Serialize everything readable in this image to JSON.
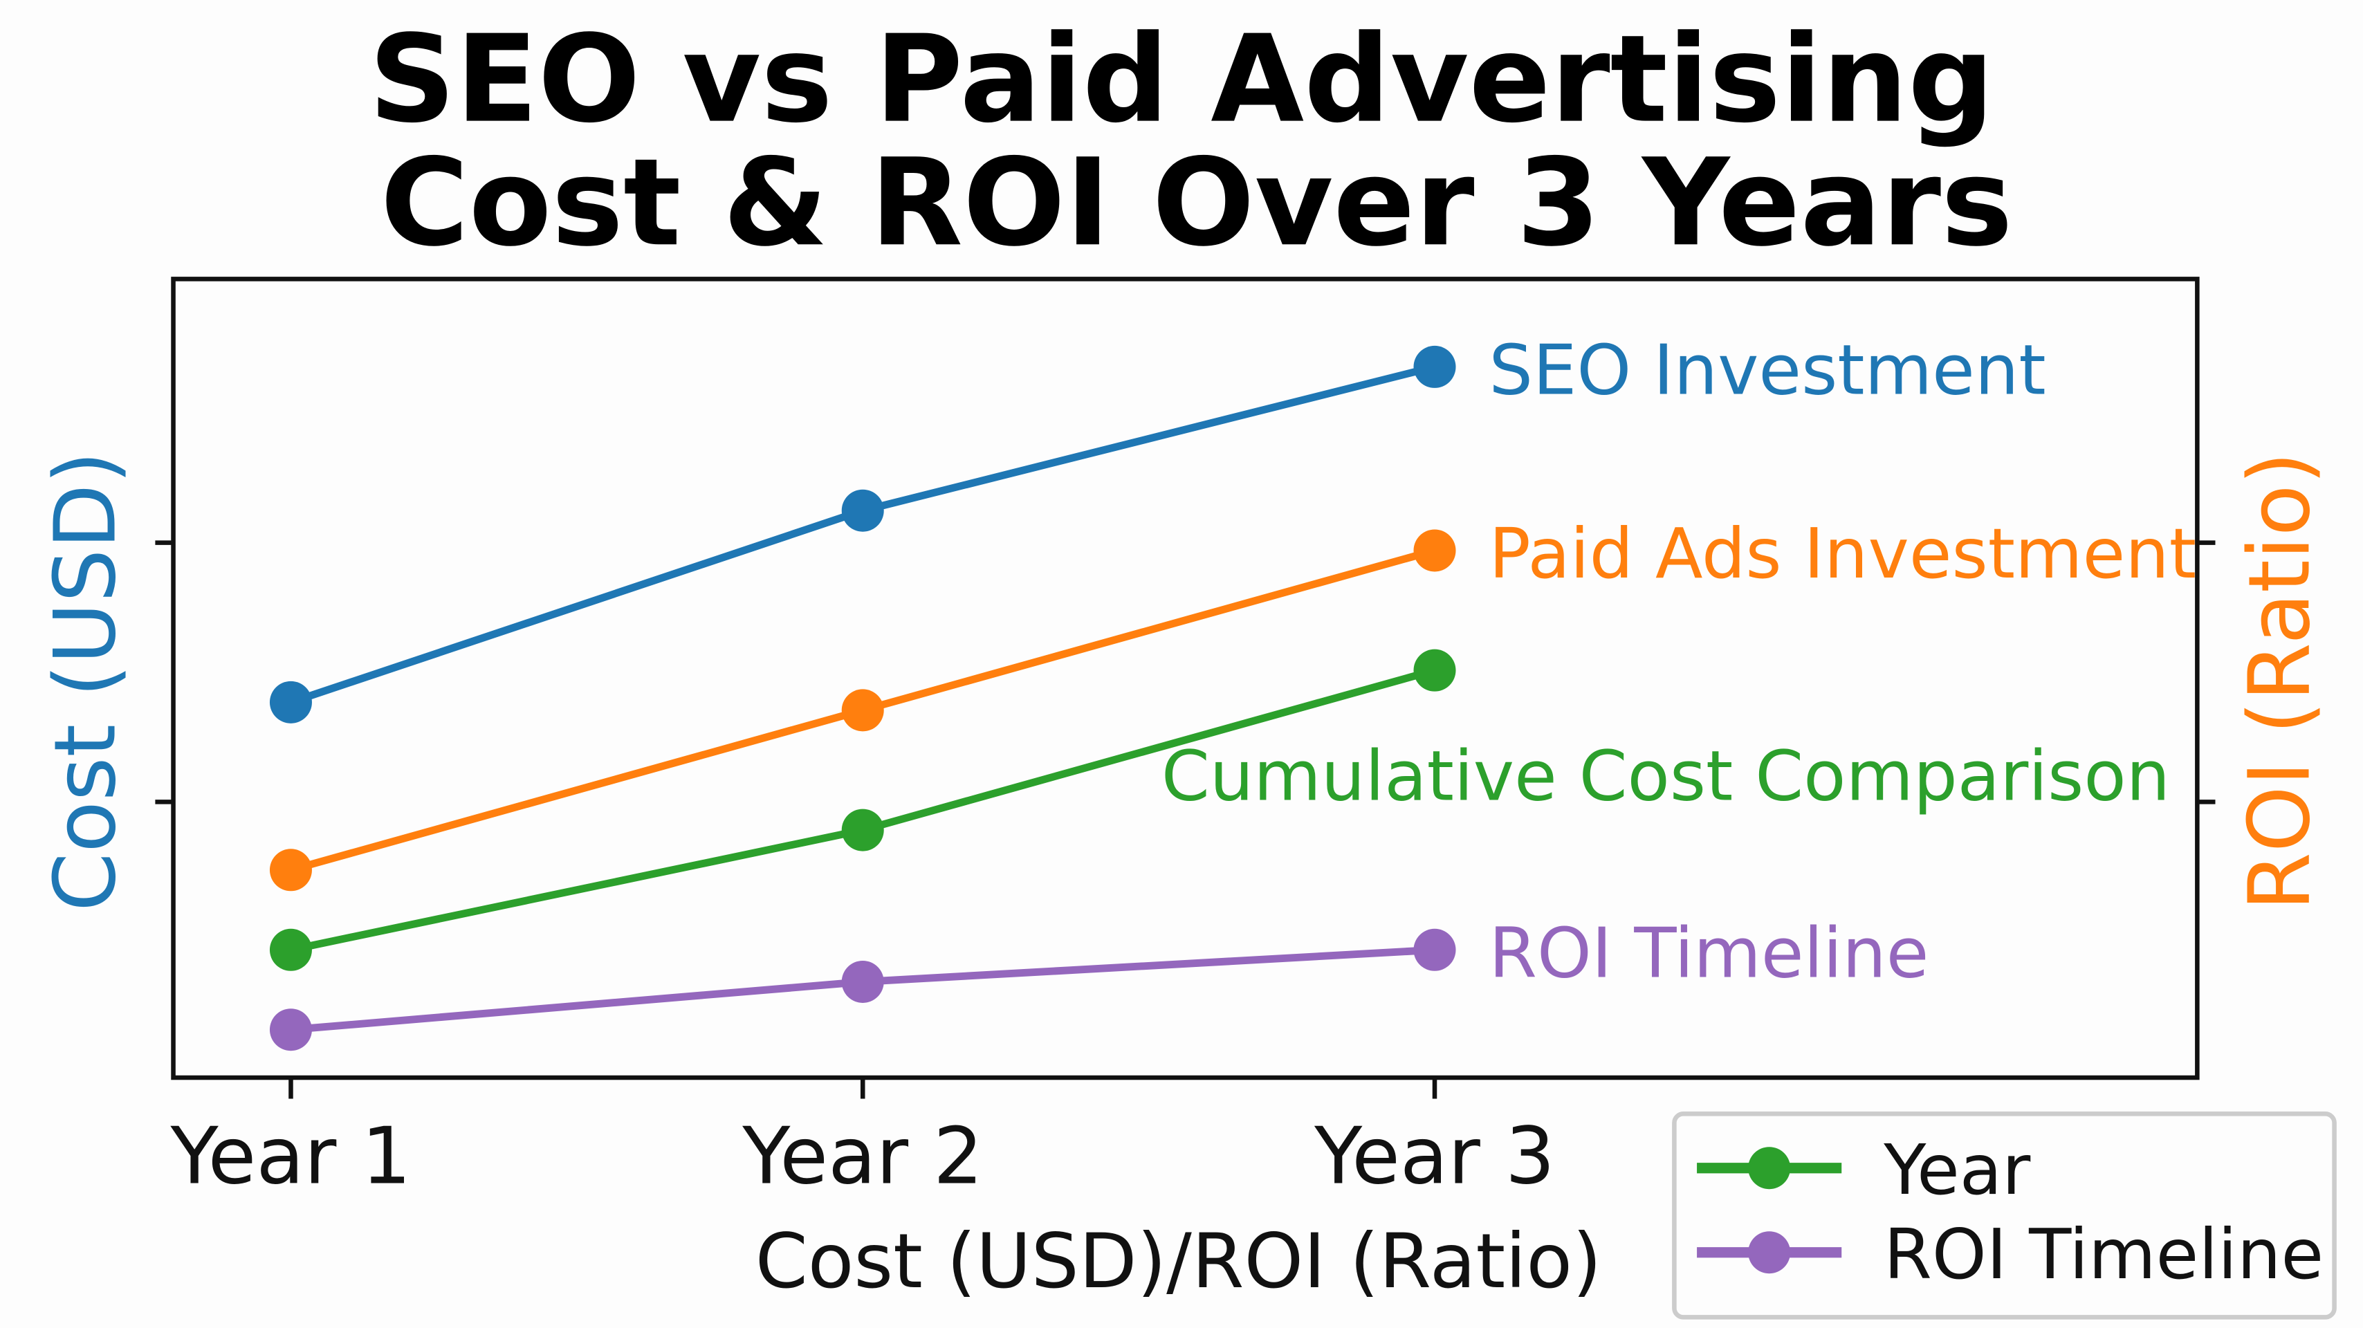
{
  "chart_data": {
    "type": "line",
    "title_lines": [
      "SEO vs Paid Advertising",
      "Cost & ROI Over 3 Years"
    ],
    "xlabel": "Cost (USD)/ROI (Ratio)",
    "ylabel_left": "Cost (USD)",
    "ylabel_right": "ROI (Ratio)",
    "categories": [
      "Year 1",
      "Year 2",
      "Year 3"
    ],
    "ylim": [
      0,
      10
    ],
    "grid": false,
    "series": [
      {
        "name": "SEO Investment",
        "color": "#1f77b4",
        "values": [
          4.7,
          7.1,
          8.9
        ]
      },
      {
        "name": "Paid Ads Investment",
        "color": "#ff7f0e",
        "values": [
          2.6,
          4.6,
          6.6
        ]
      },
      {
        "name": "Cumulative Cost Comparison",
        "color": "#2ca02c",
        "values": [
          1.6,
          3.1,
          5.1
        ]
      },
      {
        "name": "ROI Timeline",
        "color": "#9467bd",
        "values": [
          0.6,
          1.2,
          1.6
        ]
      }
    ],
    "legend": {
      "placement": "bottom-right",
      "entries": [
        {
          "label": "Year",
          "color": "#2ca02c"
        },
        {
          "label": "ROI Timeline",
          "color": "#9467bd"
        }
      ]
    }
  }
}
